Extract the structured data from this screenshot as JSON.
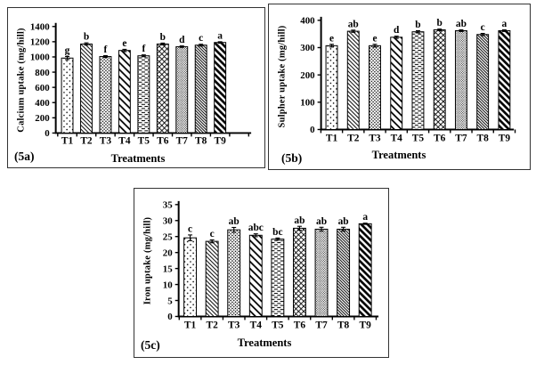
{
  "figure": {
    "background": "#ffffff",
    "panel_border_color": "#333333",
    "ink_color": "#000000"
  },
  "bar_patterns": [
    "sparse-dots",
    "thin-diagonal-lines",
    "dense-dots",
    "wide-diagonal-lines",
    "horizontal-dashes",
    "diamond-crosshatch",
    "fine-gray-dots",
    "dense-diagonal-lines",
    "thick-diagonal-stripes"
  ],
  "chart_data": [
    {
      "type": "bar",
      "panel_tag": "(5a)",
      "ylabel": "Calcium uptake (mg/hill)",
      "xlabel": "Treatments",
      "categories": [
        "T1",
        "T2",
        "T3",
        "T4",
        "T5",
        "T6",
        "T7",
        "T8",
        "T9"
      ],
      "values": [
        985,
        1170,
        1005,
        1085,
        1015,
        1170,
        1135,
        1155,
        1190
      ],
      "errors": [
        20,
        15,
        12,
        15,
        12,
        12,
        10,
        12,
        10
      ],
      "sig_letters": [
        "g",
        "b",
        "f",
        "e",
        "f",
        "b",
        "d",
        "c",
        "a"
      ],
      "ylim": [
        0,
        1400
      ],
      "ytick_step": 200,
      "ytick_labels": [
        "0",
        "200",
        "400",
        "600",
        "800",
        "1000",
        "1200",
        "1400"
      ],
      "grid": false,
      "legend": false
    },
    {
      "type": "bar",
      "panel_tag": "(5b)",
      "ylabel": "Sulpher uptake  (mg/hill)",
      "xlabel": "Treatments",
      "categories": [
        "T1",
        "T2",
        "T3",
        "T4",
        "T5",
        "T6",
        "T7",
        "T8",
        "T9"
      ],
      "values": [
        307,
        360,
        307,
        338,
        358,
        365,
        362,
        348,
        362
      ],
      "errors": [
        5,
        4,
        5,
        4,
        4,
        3,
        3,
        4,
        3
      ],
      "sig_letters": [
        "e",
        "ab",
        "e",
        "d",
        "b",
        "b",
        "ab",
        "c",
        "a"
      ],
      "ylim": [
        0,
        400
      ],
      "ytick_step": 100,
      "ytick_labels": [
        "0",
        "100",
        "200",
        "300",
        "400"
      ],
      "grid": false,
      "legend": false
    },
    {
      "type": "bar",
      "panel_tag": "(5c)",
      "ylabel": "Iron uptake (mg/hill)",
      "xlabel": "Treatments",
      "categories": [
        "T1",
        "T2",
        "T3",
        "T4",
        "T5",
        "T6",
        "T7",
        "T8",
        "T9"
      ],
      "values": [
        24.6,
        23.5,
        27.1,
        25.4,
        24.2,
        27.6,
        27.3,
        27.3,
        29.0
      ],
      "errors": [
        0.9,
        0.45,
        0.75,
        0.45,
        0.35,
        0.6,
        0.6,
        0.6,
        0.2
      ],
      "sig_letters": [
        "c",
        "c",
        "ab",
        "abc",
        "bc",
        "ab",
        "ab",
        "ab",
        "a"
      ],
      "ylim": [
        0,
        35
      ],
      "ytick_step": 5,
      "ytick_labels": [
        "0",
        "5",
        "10",
        "15",
        "20",
        "25",
        "30",
        "35"
      ],
      "grid": false,
      "legend": false
    }
  ]
}
